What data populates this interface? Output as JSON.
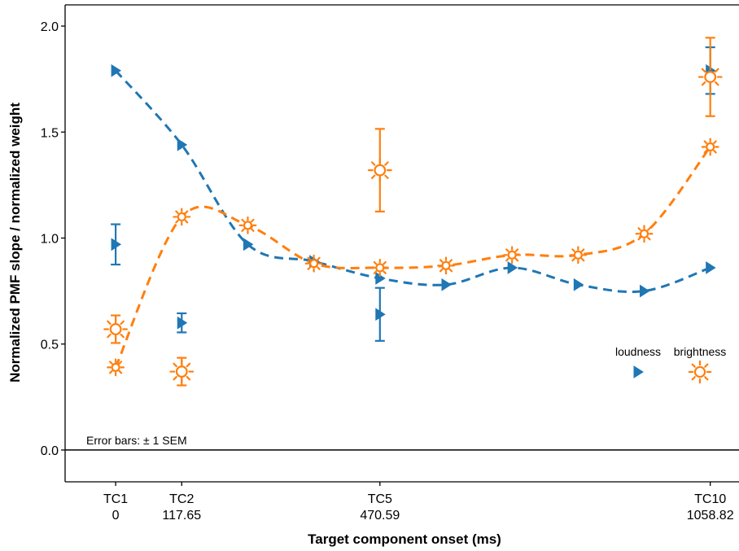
{
  "chart_data": {
    "type": "scatter",
    "xlabel": "Target component onset (ms)",
    "ylabel": "Normalized PMF slope / normalized weight",
    "ylim": [
      -0.15,
      2.1
    ],
    "xlim": [
      -90,
      1110
    ],
    "yticks": [
      0.0,
      0.5,
      1.0,
      1.5,
      2.0
    ],
    "ytick_labels": [
      "0.0",
      "0.5",
      "1.0",
      "1.5",
      "2.0"
    ],
    "xticks": [
      {
        "x": 0,
        "label_top": "TC1",
        "label_bottom": "0"
      },
      {
        "x": 117.65,
        "label_top": "TC2",
        "label_bottom": "117.65"
      },
      {
        "x": 470.59,
        "label_top": "TC5",
        "label_bottom": "470.59"
      },
      {
        "x": 1058.82,
        "label_top": "TC10",
        "label_bottom": "1058.82"
      }
    ],
    "note": "Error bars: ± 1 SEM",
    "legend": [
      {
        "label": "loudness",
        "marker": "triangle",
        "color": "#1f77b4"
      },
      {
        "label": "brightness",
        "marker": "sun",
        "color": "#ff7f0e"
      }
    ],
    "legend_position": "right",
    "grid": false,
    "colors": {
      "loudness": "#1f77b4",
      "brightness": "#ff7f0e"
    },
    "series": [
      {
        "name": "loudness",
        "kind": "weights",
        "style": "dashed-line",
        "color": "#1f77b4",
        "x": [
          0,
          117.65,
          235.29,
          352.94,
          470.59,
          588.24,
          705.88,
          823.53,
          941.18,
          1058.82
        ],
        "y": [
          1.79,
          1.44,
          0.97,
          0.89,
          0.81,
          0.78,
          0.86,
          0.78,
          0.75,
          0.86
        ]
      },
      {
        "name": "brightness",
        "kind": "weights",
        "style": "dashed-line",
        "color": "#ff7f0e",
        "x": [
          0,
          117.65,
          235.29,
          352.94,
          470.59,
          588.24,
          705.88,
          823.53,
          941.18,
          1058.82
        ],
        "y": [
          0.39,
          1.1,
          1.06,
          0.88,
          0.86,
          0.87,
          0.92,
          0.92,
          1.02,
          1.43
        ]
      },
      {
        "name": "loudness",
        "kind": "pmf_slope",
        "style": "points-errorbars",
        "color": "#1f77b4",
        "x": [
          0,
          117.65,
          470.59,
          1058.82
        ],
        "y": [
          0.97,
          0.6,
          0.64,
          1.79
        ],
        "err": [
          0.095,
          0.045,
          0.125,
          0.11
        ]
      },
      {
        "name": "brightness",
        "kind": "pmf_slope",
        "style": "points-errorbars",
        "color": "#ff7f0e",
        "x": [
          0,
          117.65,
          470.59,
          1058.82
        ],
        "y": [
          0.57,
          0.37,
          1.32,
          1.76
        ],
        "err": [
          0.065,
          0.065,
          0.195,
          0.185
        ]
      }
    ]
  }
}
